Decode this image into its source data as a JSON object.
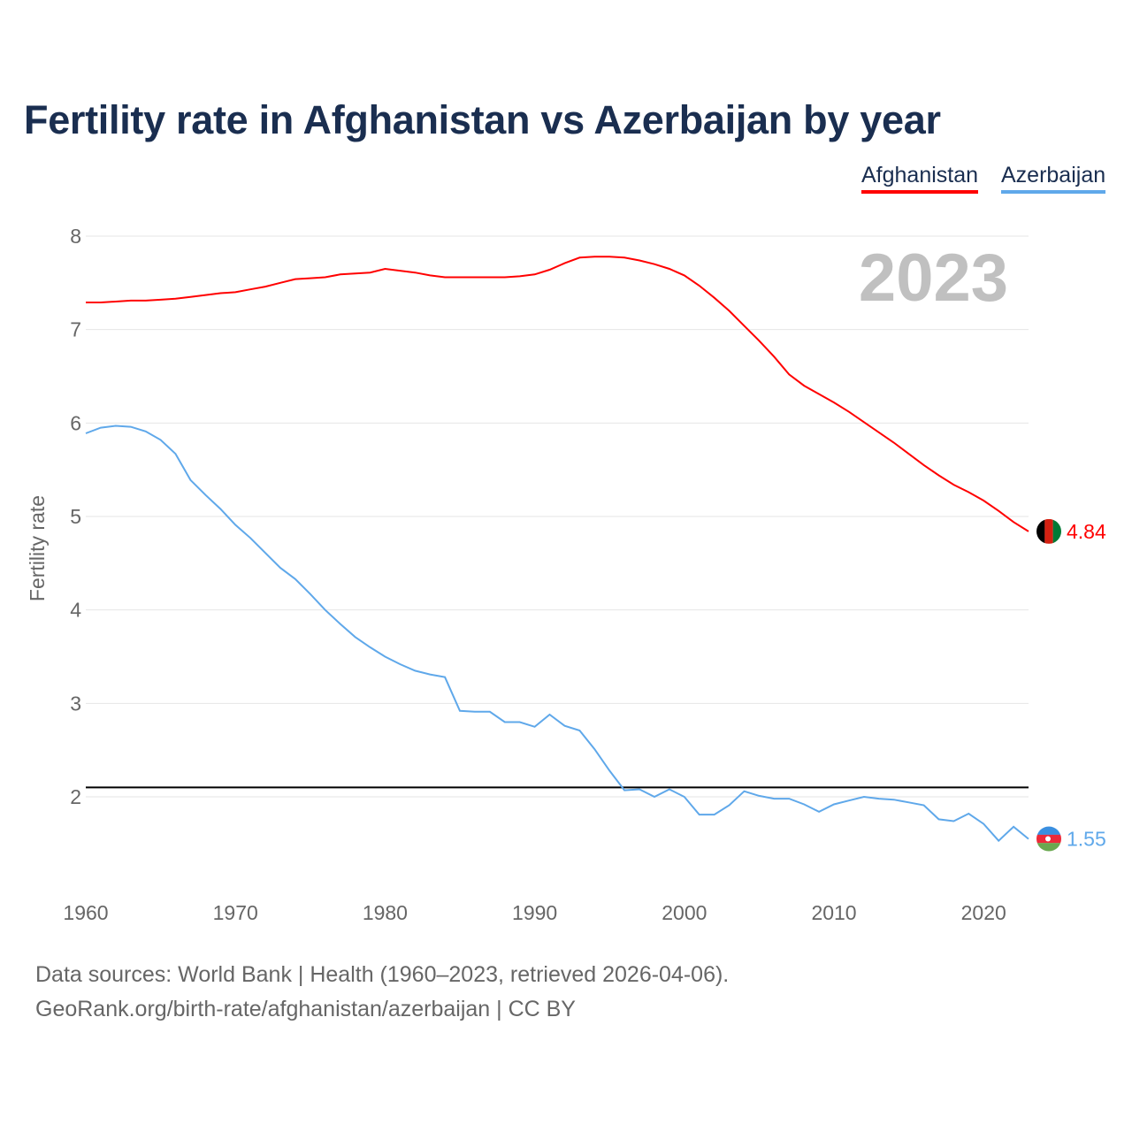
{
  "chart_data": {
    "type": "line",
    "title": "Fertility rate in Afghanistan vs Azerbaijan by year",
    "xlabel": "",
    "ylabel": "Fertility rate",
    "xlim": [
      1960,
      2023
    ],
    "ylim": [
      1.1,
      8.3
    ],
    "x_ticks": [
      1960,
      1970,
      1980,
      1990,
      2000,
      2010,
      2020
    ],
    "y_ticks": [
      2,
      3,
      4,
      5,
      6,
      7,
      8
    ],
    "grid": true,
    "legend_position": "top-right",
    "year_label": "2023",
    "reference_line": 2.1,
    "x": [
      1960,
      1961,
      1962,
      1963,
      1964,
      1965,
      1966,
      1967,
      1968,
      1969,
      1970,
      1971,
      1972,
      1973,
      1974,
      1975,
      1976,
      1977,
      1978,
      1979,
      1980,
      1981,
      1982,
      1983,
      1984,
      1985,
      1986,
      1987,
      1988,
      1989,
      1990,
      1991,
      1992,
      1993,
      1994,
      1995,
      1996,
      1997,
      1998,
      1999,
      2000,
      2001,
      2002,
      2003,
      2004,
      2005,
      2006,
      2007,
      2008,
      2009,
      2010,
      2011,
      2012,
      2013,
      2014,
      2015,
      2016,
      2017,
      2018,
      2019,
      2020,
      2021,
      2022,
      2023
    ],
    "series": [
      {
        "name": "Afghanistan",
        "color": "#ff0000",
        "end_label": "4.84",
        "values": [
          7.29,
          7.29,
          7.3,
          7.31,
          7.31,
          7.32,
          7.33,
          7.35,
          7.37,
          7.39,
          7.4,
          7.43,
          7.46,
          7.5,
          7.54,
          7.55,
          7.56,
          7.59,
          7.6,
          7.61,
          7.65,
          7.63,
          7.61,
          7.58,
          7.56,
          7.56,
          7.56,
          7.56,
          7.56,
          7.57,
          7.59,
          7.64,
          7.71,
          7.77,
          7.78,
          7.78,
          7.77,
          7.74,
          7.7,
          7.65,
          7.58,
          7.47,
          7.34,
          7.2,
          7.04,
          6.88,
          6.71,
          6.52,
          6.4,
          6.31,
          6.22,
          6.12,
          6.01,
          5.9,
          5.79,
          5.67,
          5.55,
          5.44,
          5.34,
          5.26,
          5.17,
          5.06,
          4.94,
          4.84
        ]
      },
      {
        "name": "Azerbaijan",
        "color": "#5fa8ea",
        "end_label": "1.55",
        "values": [
          5.89,
          5.95,
          5.97,
          5.96,
          5.91,
          5.82,
          5.67,
          5.39,
          5.23,
          5.08,
          4.91,
          4.77,
          4.61,
          4.45,
          4.33,
          4.17,
          4.0,
          3.85,
          3.71,
          3.6,
          3.5,
          3.42,
          3.35,
          3.31,
          3.28,
          2.92,
          2.91,
          2.91,
          2.8,
          2.8,
          2.75,
          2.88,
          2.76,
          2.71,
          2.51,
          2.28,
          2.07,
          2.08,
          2.0,
          2.08,
          2.0,
          1.81,
          1.81,
          1.91,
          2.06,
          2.01,
          1.98,
          1.98,
          1.92,
          1.84,
          1.92,
          1.96,
          2.0,
          1.98,
          1.97,
          1.94,
          1.91,
          1.76,
          1.74,
          1.82,
          1.71,
          1.53,
          1.68,
          1.55
        ]
      }
    ]
  },
  "footer": {
    "line1": "Data sources: World Bank | Health (1960–2023, retrieved 2026-04-06).",
    "line2": "GeoRank.org/birth-rate/afghanistan/azerbaijan | CC BY"
  }
}
